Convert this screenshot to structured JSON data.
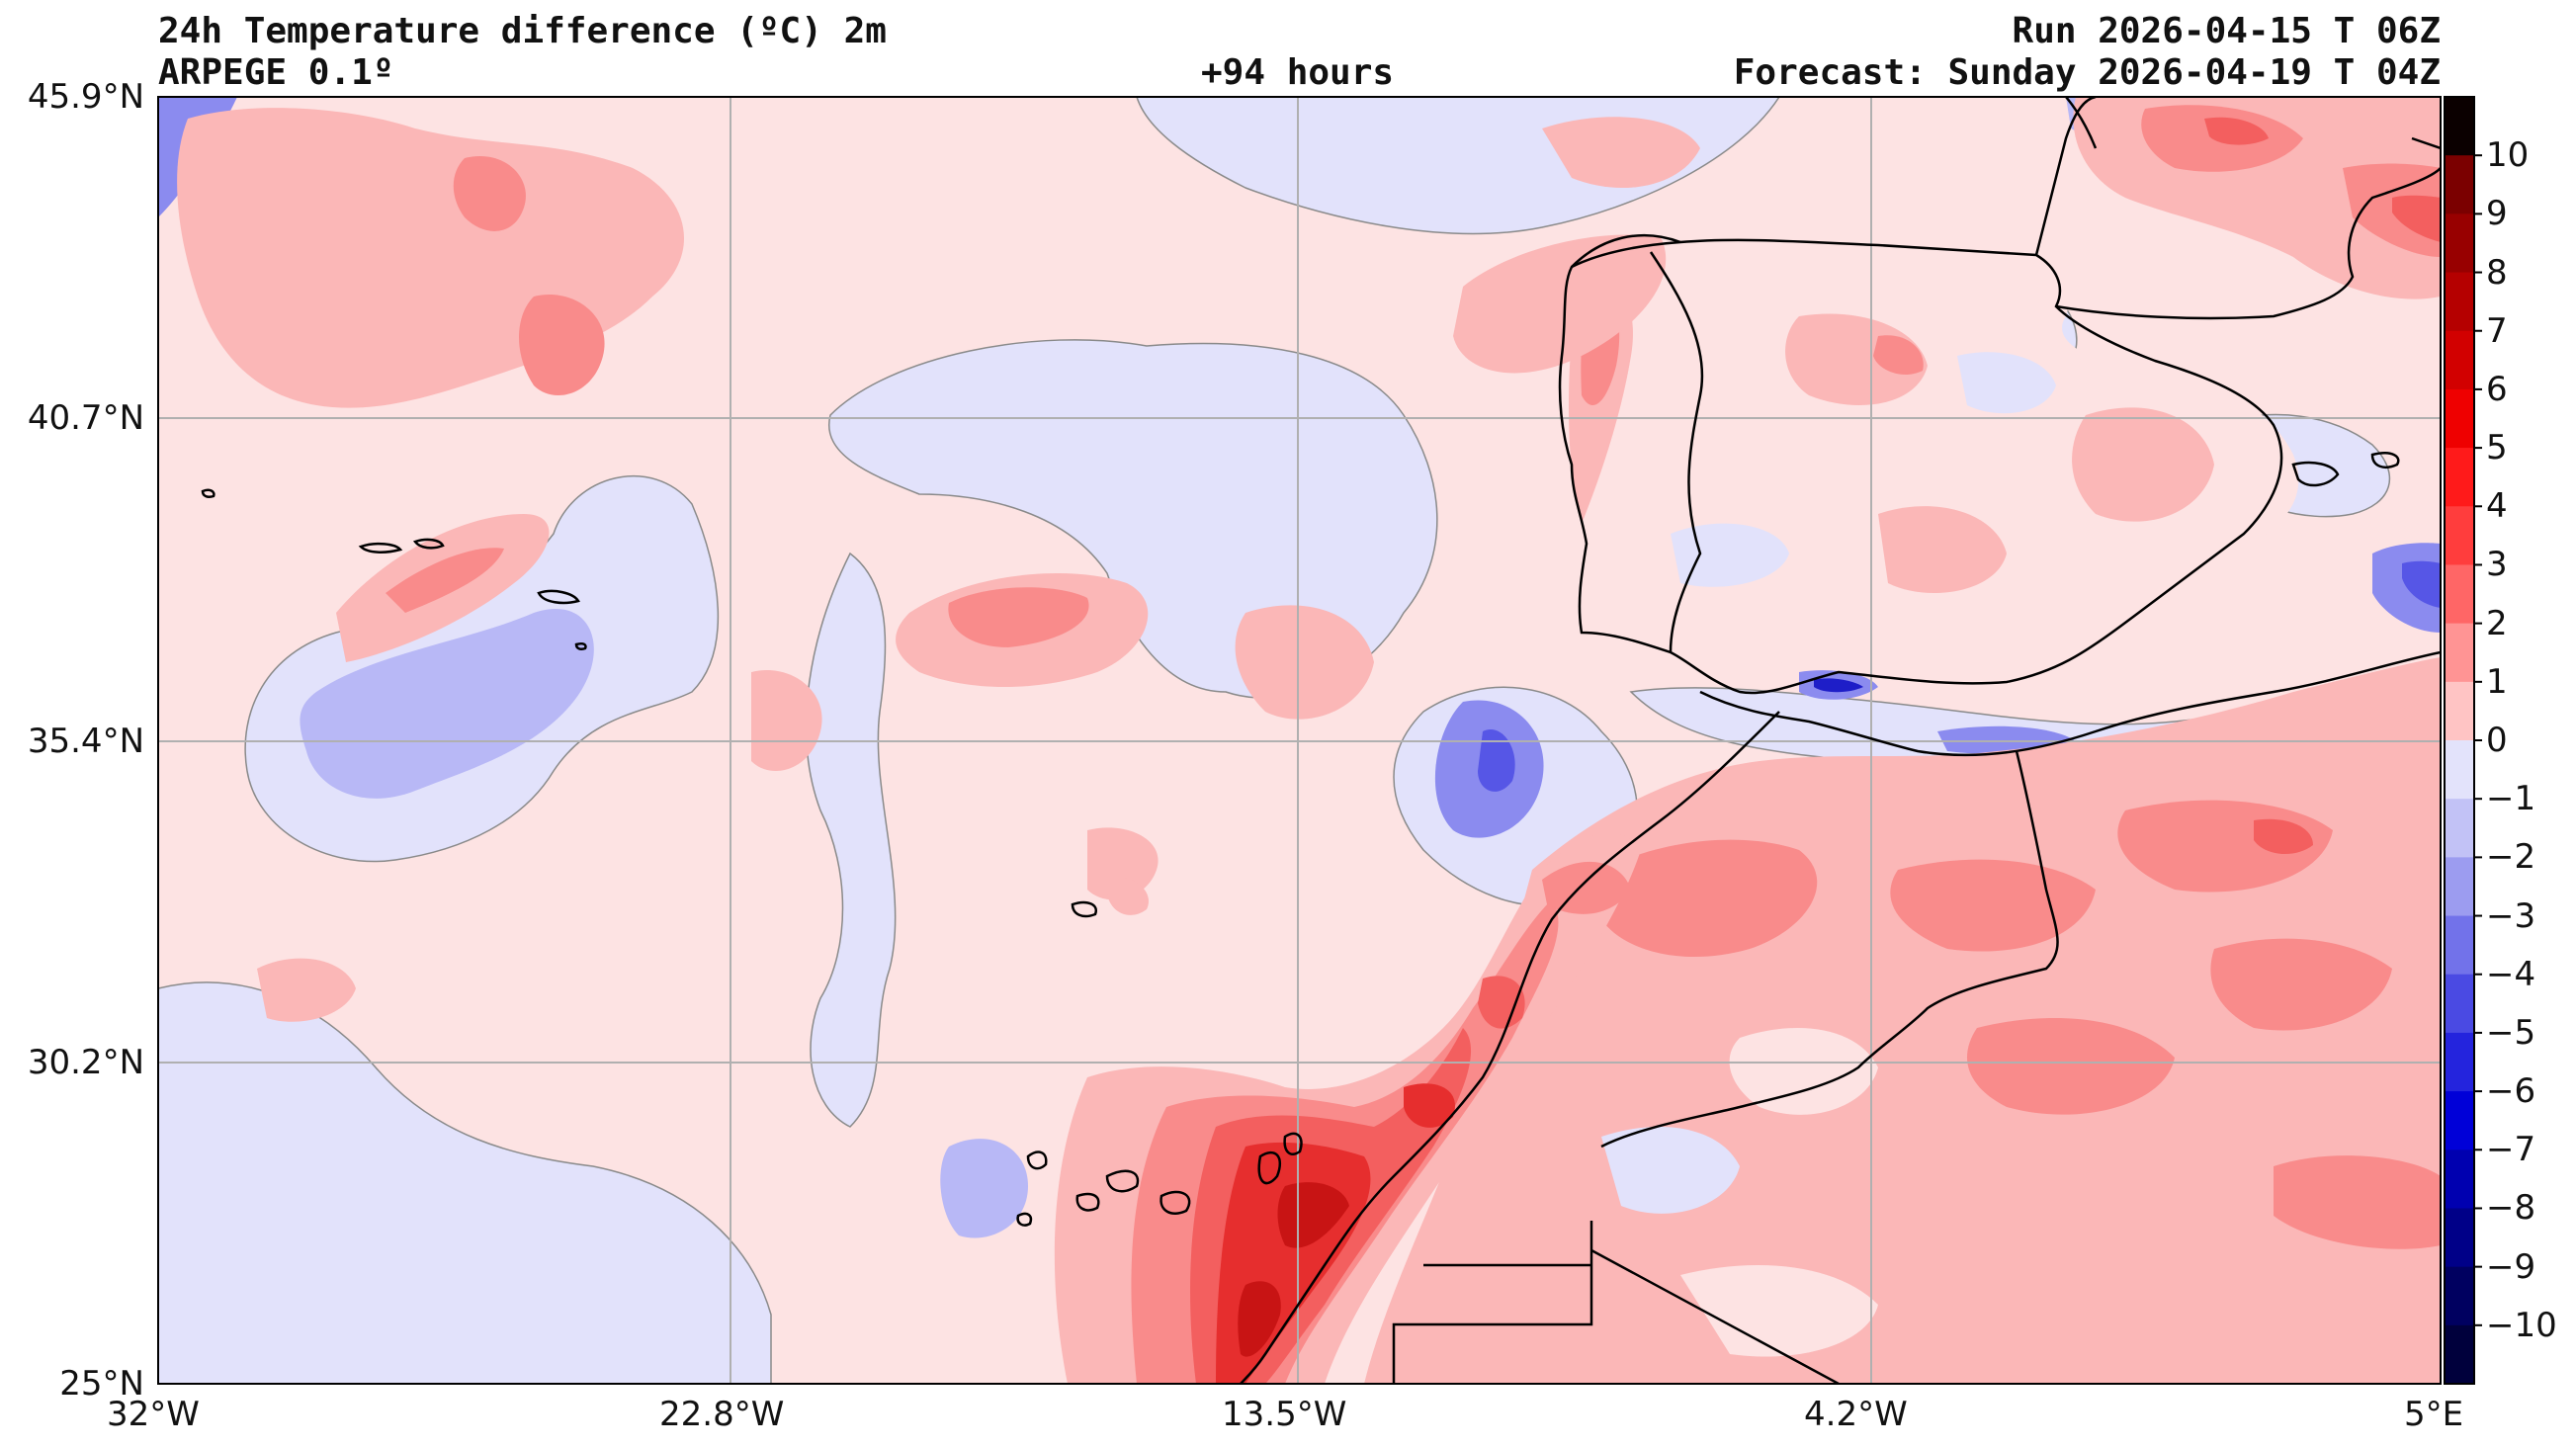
{
  "header": {
    "title": "24h Temperature difference (ºC) 2m",
    "model": "ARPEGE 0.1º",
    "lead_time": "+94 hours",
    "run": "Run 2026-04-15 T 06Z",
    "forecast": "Forecast: Sunday 2026-04-19 T 04Z"
  },
  "map": {
    "lat_labels": [
      "45.9°N",
      "40.7°N",
      "35.4°N",
      "30.2°N",
      "25°N"
    ],
    "lon_labels": [
      "32°W",
      "22.8°W",
      "13.5°W",
      "4.2°W",
      "5°E"
    ],
    "extent": {
      "west": -32,
      "east": 5,
      "south": 25,
      "north": 45.9
    },
    "colors": {
      "neutral_warm": "#fde3e3",
      "neutral_cool": "#e2e2fb",
      "warm_1": "#fbb7b7",
      "warm_2": "#f98b8b",
      "warm_3": "#f35f5f",
      "warm_4": "#e62e2e",
      "warm_5": "#c81414",
      "cool_1": "#b8b8f6",
      "cool_2": "#8b8bef",
      "cool_3": "#5656e6",
      "cool_4": "#1e1ec8",
      "coast": "#000000",
      "contour": "#7f7f7f",
      "grid": "#b0b0b0"
    }
  },
  "colorbar": {
    "ticks": [
      "10",
      "9",
      "8",
      "7",
      "6",
      "5",
      "4",
      "3",
      "2",
      "1",
      "0",
      "−1",
      "−2",
      "−3",
      "−4",
      "−5",
      "−6",
      "−7",
      "−8",
      "−9",
      "−10"
    ],
    "colors": [
      "#0b0000",
      "#7b0000",
      "#980000",
      "#b50000",
      "#d20000",
      "#ef0000",
      "#ff1a1a",
      "#ff3d3d",
      "#ff6666",
      "#ff9494",
      "#ffc4c4",
      "#e3e3fb",
      "#c2c2f6",
      "#9c9cf0",
      "#7272ea",
      "#4a4ae3",
      "#2424dd",
      "#0000d8",
      "#0000b0",
      "#000088",
      "#000060",
      "#00003c"
    ]
  }
}
